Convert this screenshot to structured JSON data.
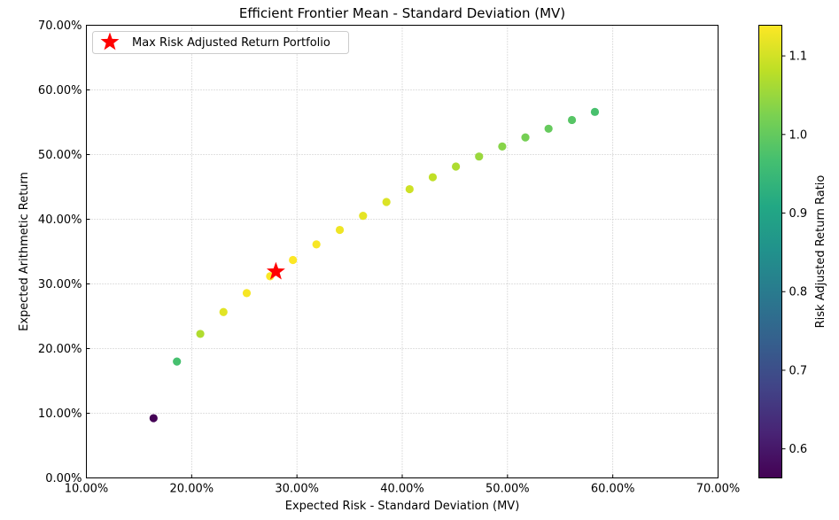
{
  "chart_data": {
    "type": "scatter",
    "title": "Efficient Frontier Mean - Standard Deviation (MV)",
    "xlabel": "Expected Risk - Standard Deviation (MV)",
    "ylabel": "Expected Arithmetic Return",
    "xlim": [
      0.1,
      0.7
    ],
    "ylim": [
      0.0,
      0.7
    ],
    "xticks": [
      "10.00%",
      "20.00%",
      "30.00%",
      "40.00%",
      "50.00%",
      "60.00%",
      "70.00%"
    ],
    "yticks": [
      "0.00%",
      "10.00%",
      "20.00%",
      "30.00%",
      "40.00%",
      "50.00%",
      "60.00%",
      "70.00%"
    ],
    "grid": true,
    "grid_style": "dotted",
    "legend_position": "top-left",
    "legend_label": "Max Risk Adjusted Return Portfolio",
    "colorbar": {
      "label": "Risk Adjusted Return Ratio",
      "ticks": [
        "0.6",
        "0.7",
        "0.8",
        "0.9",
        "1.0",
        "1.1"
      ],
      "range": [
        0.563,
        1.139
      ],
      "colormap": "viridis"
    },
    "points": [
      {
        "x": 0.1638,
        "y": 0.0924,
        "ratio": 0.564
      },
      {
        "x": 0.186,
        "y": 0.18,
        "ratio": 0.968
      },
      {
        "x": 0.2082,
        "y": 0.2227,
        "ratio": 1.07
      },
      {
        "x": 0.2302,
        "y": 0.2565,
        "ratio": 1.114
      },
      {
        "x": 0.2523,
        "y": 0.2858,
        "ratio": 1.133
      },
      {
        "x": 0.2745,
        "y": 0.3118,
        "ratio": 1.136
      },
      {
        "x": 0.2962,
        "y": 0.337,
        "ratio": 1.138
      },
      {
        "x": 0.3185,
        "y": 0.3611,
        "ratio": 1.134
      },
      {
        "x": 0.3407,
        "y": 0.3835,
        "ratio": 1.126
      },
      {
        "x": 0.3628,
        "y": 0.4053,
        "ratio": 1.117
      },
      {
        "x": 0.385,
        "y": 0.4267,
        "ratio": 1.108
      },
      {
        "x": 0.407,
        "y": 0.4465,
        "ratio": 1.097
      },
      {
        "x": 0.429,
        "y": 0.465,
        "ratio": 1.084
      },
      {
        "x": 0.451,
        "y": 0.4815,
        "ratio": 1.068
      },
      {
        "x": 0.473,
        "y": 0.497,
        "ratio": 1.051
      },
      {
        "x": 0.495,
        "y": 0.5125,
        "ratio": 1.035
      },
      {
        "x": 0.517,
        "y": 0.5265,
        "ratio": 1.018
      },
      {
        "x": 0.539,
        "y": 0.54,
        "ratio": 1.002
      },
      {
        "x": 0.5612,
        "y": 0.5535,
        "ratio": 0.986
      },
      {
        "x": 0.583,
        "y": 0.566,
        "ratio": 0.971
      }
    ],
    "optimal": {
      "x": 0.28,
      "y": 0.319,
      "marker": "star",
      "color": "#ff0000"
    }
  }
}
